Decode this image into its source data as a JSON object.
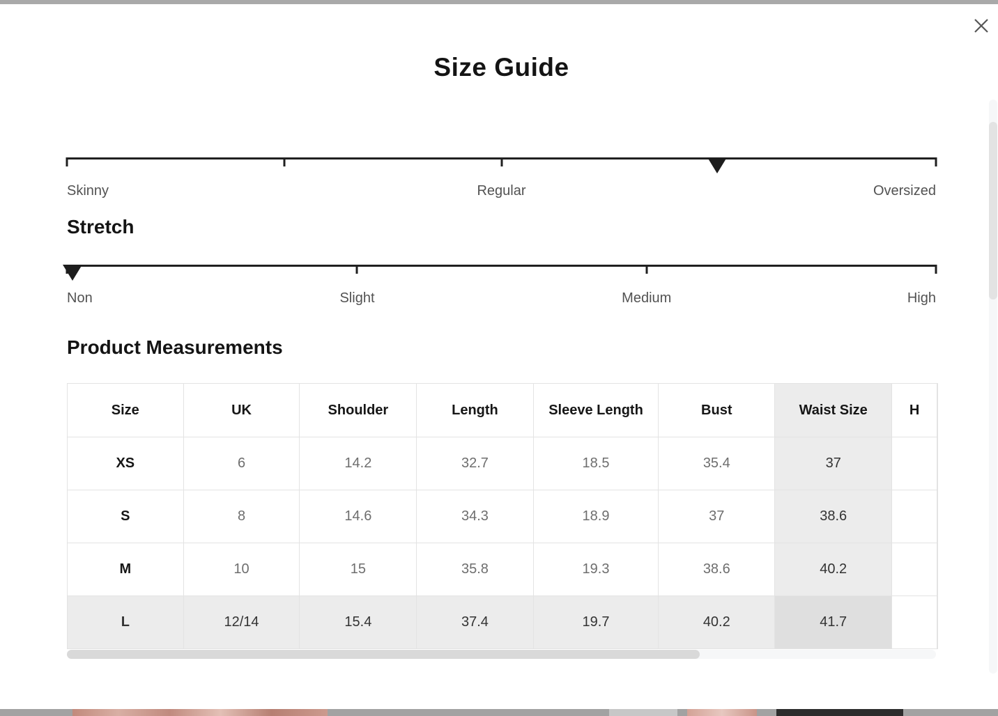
{
  "modal": {
    "title": "Size Guide"
  },
  "fit_scale": {
    "ticks_pct": [
      0,
      25,
      50,
      75,
      100
    ],
    "marker_pct": 74.8,
    "labels": [
      {
        "text": "Skinny",
        "align": "left"
      },
      {
        "text": "Regular",
        "align": "center",
        "pos": 50
      },
      {
        "text": "Oversized",
        "align": "right"
      }
    ]
  },
  "stretch_scale": {
    "heading": "Stretch",
    "ticks_pct": [
      0,
      33.4,
      66.7,
      100
    ],
    "marker_pct": 0.65,
    "labels": [
      {
        "text": "Non",
        "align": "left"
      },
      {
        "text": "Slight",
        "align": "center",
        "pos": 33.4
      },
      {
        "text": "Medium",
        "align": "center",
        "pos": 66.7
      },
      {
        "text": "High",
        "align": "right"
      }
    ]
  },
  "measurements": {
    "heading": "Product Measurements",
    "columns": [
      "Size",
      "UK",
      "Shoulder",
      "Length",
      "Sleeve Length",
      "Bust",
      "Waist Size",
      "H"
    ],
    "highlight": {
      "column_index": 6,
      "row_index": 3
    },
    "rows": [
      [
        "XS",
        "6",
        "14.2",
        "32.7",
        "18.5",
        "35.4",
        "37",
        ""
      ],
      [
        "S",
        "8",
        "14.6",
        "34.3",
        "18.9",
        "37",
        "38.6",
        ""
      ],
      [
        "M",
        "10",
        "15",
        "35.8",
        "19.3",
        "38.6",
        "40.2",
        ""
      ],
      [
        "L",
        "12/14",
        "15.4",
        "37.4",
        "19.7",
        "40.2",
        "41.7",
        ""
      ]
    ]
  },
  "colors": {
    "chrome_bar": "#a9a9a9",
    "scale_line": "#202020",
    "marker": "#1d1d1d",
    "label_text": "#525252",
    "heading_text": "#141414",
    "value_text": "#6e6e6e",
    "border": "#e3e3e3",
    "highlight_bg": "#ececec",
    "highlight_strong_bg": "#dfdfdf",
    "scrollbar_track": "#f6f7f8",
    "scrollbar_thumb": "#d9d9d9"
  }
}
